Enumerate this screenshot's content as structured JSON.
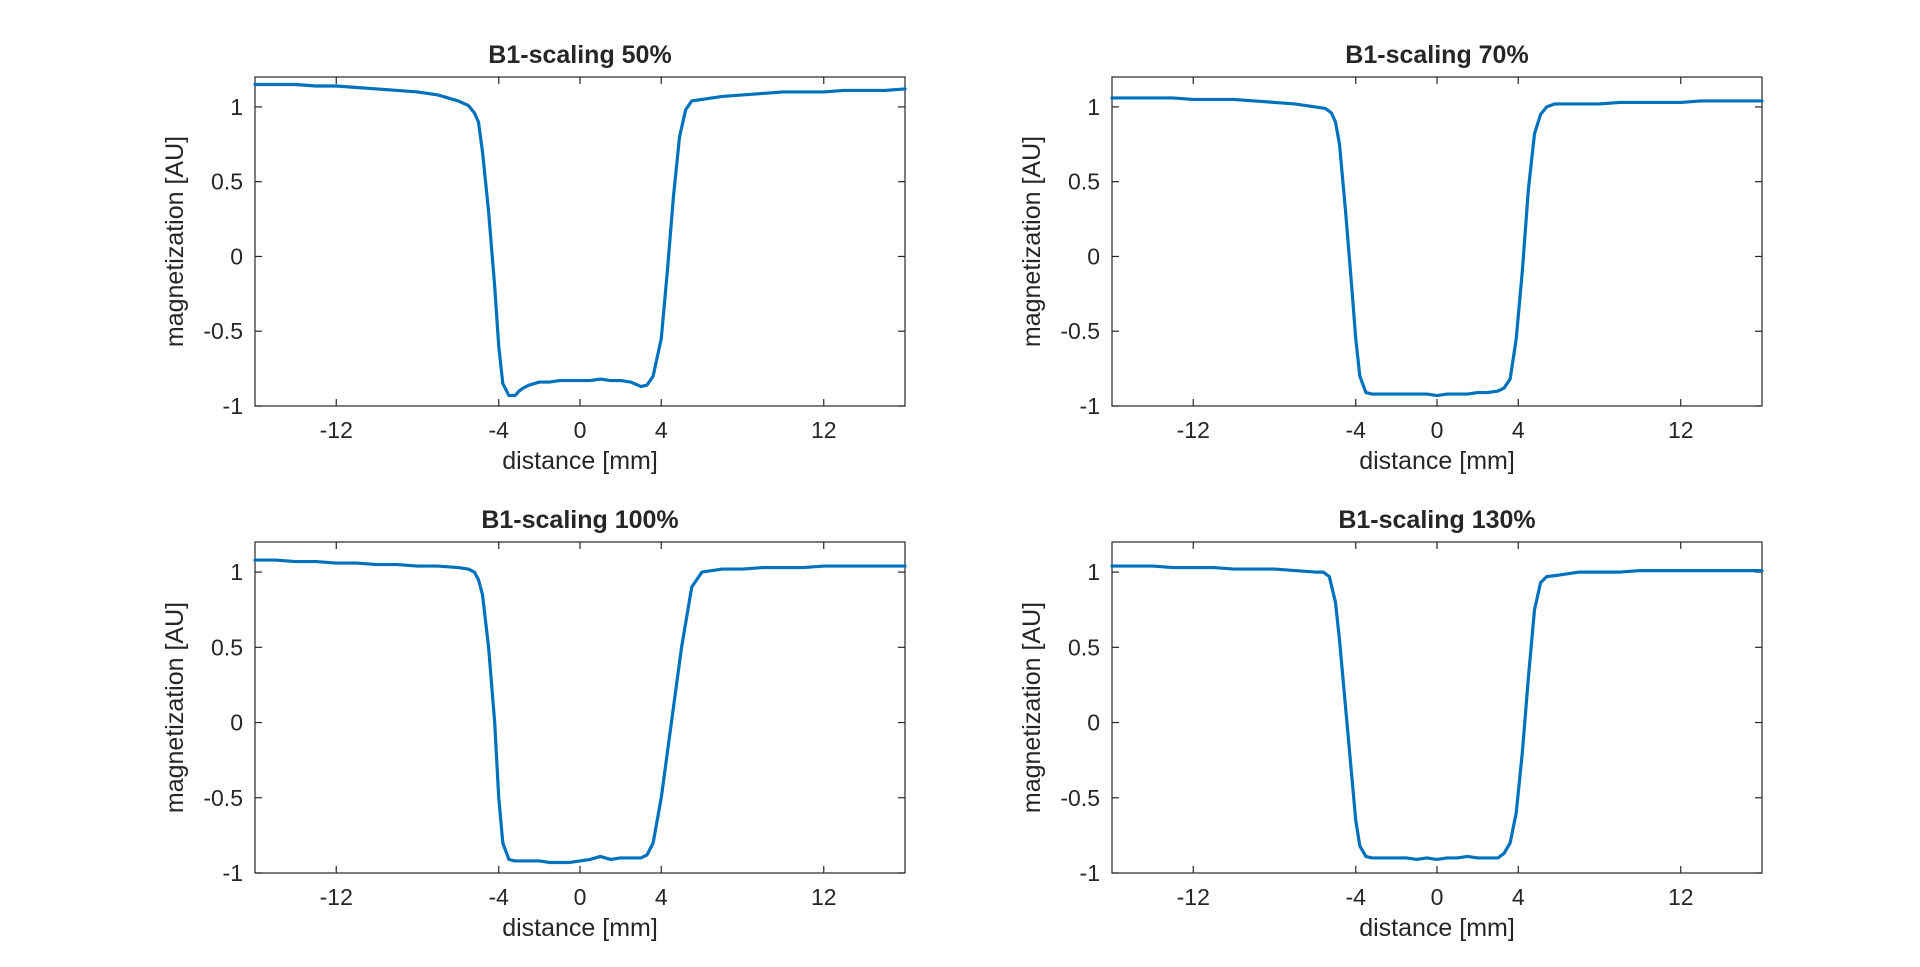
{
  "figure": {
    "line_color": "#0072BD",
    "axis_color": "#262626",
    "background": "#ffffff"
  },
  "chart_data": [
    {
      "type": "line",
      "title": "B1-scaling 50%",
      "xlabel": "distance [mm]",
      "ylabel": "magnetization [AU]",
      "xlim": [
        -16,
        16
      ],
      "ylim": [
        -1,
        1.2
      ],
      "xticks": [
        -12,
        -4,
        0,
        4,
        12
      ],
      "yticks": [
        -1,
        -0.5,
        0,
        0.5,
        1
      ],
      "xtick_labels": [
        "-12",
        "-4",
        "0",
        "4",
        "12"
      ],
      "ytick_labels": [
        "-1",
        "-0.5",
        "0",
        "0.5",
        "1"
      ],
      "series": [
        {
          "name": "magnetization",
          "x": [
            -16,
            -15,
            -14,
            -13,
            -12,
            -11,
            -10,
            -9,
            -8,
            -7,
            -6.5,
            -6,
            -5.5,
            -5.2,
            -5,
            -4.8,
            -4.5,
            -4.2,
            -4,
            -3.8,
            -3.5,
            -3.2,
            -3,
            -2.8,
            -2.5,
            -2,
            -1.5,
            -1,
            -0.5,
            0,
            0.5,
            1,
            1.5,
            2,
            2.5,
            3,
            3.3,
            3.6,
            4,
            4.3,
            4.6,
            4.9,
            5.2,
            5.5,
            6,
            6.5,
            7,
            8,
            9,
            10,
            11,
            12,
            13,
            14,
            15,
            16
          ],
          "y": [
            1.15,
            1.15,
            1.15,
            1.14,
            1.14,
            1.13,
            1.12,
            1.11,
            1.1,
            1.08,
            1.06,
            1.04,
            1.01,
            0.96,
            0.9,
            0.7,
            0.3,
            -0.2,
            -0.6,
            -0.85,
            -0.93,
            -0.93,
            -0.9,
            -0.88,
            -0.86,
            -0.84,
            -0.84,
            -0.83,
            -0.83,
            -0.83,
            -0.83,
            -0.82,
            -0.83,
            -0.83,
            -0.84,
            -0.87,
            -0.86,
            -0.8,
            -0.55,
            -0.1,
            0.4,
            0.8,
            0.98,
            1.04,
            1.05,
            1.06,
            1.07,
            1.08,
            1.09,
            1.1,
            1.1,
            1.1,
            1.11,
            1.11,
            1.11,
            1.12
          ]
        }
      ]
    },
    {
      "type": "line",
      "title": "B1-scaling 70%",
      "xlabel": "distance [mm]",
      "ylabel": "magnetization [AU]",
      "xlim": [
        -16,
        16
      ],
      "ylim": [
        -1,
        1.2
      ],
      "xticks": [
        -12,
        -4,
        0,
        4,
        12
      ],
      "yticks": [
        -1,
        -0.5,
        0,
        0.5,
        1
      ],
      "xtick_labels": [
        "-12",
        "-4",
        "0",
        "4",
        "12"
      ],
      "ytick_labels": [
        "-1",
        "-0.5",
        "0",
        "0.5",
        "1"
      ],
      "series": [
        {
          "name": "magnetization",
          "x": [
            -16,
            -15,
            -14,
            -13,
            -12,
            -11,
            -10,
            -9,
            -8,
            -7,
            -6,
            -5.5,
            -5.2,
            -5,
            -4.8,
            -4.5,
            -4.2,
            -4,
            -3.8,
            -3.5,
            -3.2,
            -3,
            -2.5,
            -2,
            -1.5,
            -1,
            -0.5,
            0,
            0.5,
            1,
            1.5,
            2,
            2.5,
            3,
            3.3,
            3.6,
            3.9,
            4.2,
            4.5,
            4.8,
            5.1,
            5.4,
            5.8,
            6.5,
            7,
            8,
            9,
            10,
            11,
            12,
            13,
            14,
            15,
            16
          ],
          "y": [
            1.06,
            1.06,
            1.06,
            1.06,
            1.05,
            1.05,
            1.05,
            1.04,
            1.03,
            1.02,
            1.0,
            0.99,
            0.96,
            0.9,
            0.75,
            0.3,
            -0.2,
            -0.55,
            -0.8,
            -0.91,
            -0.92,
            -0.92,
            -0.92,
            -0.92,
            -0.92,
            -0.92,
            -0.92,
            -0.93,
            -0.92,
            -0.92,
            -0.92,
            -0.91,
            -0.91,
            -0.9,
            -0.88,
            -0.82,
            -0.55,
            -0.1,
            0.45,
            0.82,
            0.95,
            1.0,
            1.02,
            1.02,
            1.02,
            1.02,
            1.03,
            1.03,
            1.03,
            1.03,
            1.04,
            1.04,
            1.04,
            1.04
          ]
        }
      ]
    },
    {
      "type": "line",
      "title": "B1-scaling 100%",
      "xlabel": "distance [mm]",
      "ylabel": "magnetization [AU]",
      "xlim": [
        -16,
        16
      ],
      "ylim": [
        -1,
        1.2
      ],
      "xticks": [
        -12,
        -4,
        0,
        4,
        12
      ],
      "yticks": [
        -1,
        -0.5,
        0,
        0.5,
        1
      ],
      "xtick_labels": [
        "-12",
        "-4",
        "0",
        "4",
        "12"
      ],
      "ytick_labels": [
        "-1",
        "-0.5",
        "0",
        "0.5",
        "1"
      ],
      "series": [
        {
          "name": "magnetization",
          "x": [
            -16,
            -15,
            -14,
            -13,
            -12,
            -11,
            -10,
            -9,
            -8,
            -7,
            -6,
            -5.5,
            -5.2,
            -5,
            -4.8,
            -4.5,
            -4.2,
            -4,
            -3.8,
            -3.5,
            -3.2,
            -3,
            -2.5,
            -2,
            -1.5,
            -1,
            -0.5,
            0,
            0.5,
            1,
            1.5,
            2,
            2.5,
            3,
            3.3,
            3.6,
            4,
            4.5,
            5,
            5.5,
            6,
            6.5,
            7,
            8,
            9,
            10,
            11,
            12,
            13,
            14,
            15,
            16
          ],
          "y": [
            1.08,
            1.08,
            1.07,
            1.07,
            1.06,
            1.06,
            1.05,
            1.05,
            1.04,
            1.04,
            1.03,
            1.02,
            1.0,
            0.95,
            0.85,
            0.5,
            0.0,
            -0.5,
            -0.8,
            -0.91,
            -0.92,
            -0.92,
            -0.92,
            -0.92,
            -0.93,
            -0.93,
            -0.93,
            -0.92,
            -0.91,
            -0.89,
            -0.91,
            -0.9,
            -0.9,
            -0.9,
            -0.88,
            -0.8,
            -0.5,
            0.0,
            0.5,
            0.9,
            1.0,
            1.01,
            1.02,
            1.02,
            1.03,
            1.03,
            1.03,
            1.04,
            1.04,
            1.04,
            1.04,
            1.04
          ]
        }
      ]
    },
    {
      "type": "line",
      "title": "B1-scaling 130%",
      "xlabel": "distance [mm]",
      "ylabel": "magnetization [AU]",
      "xlim": [
        -16,
        16
      ],
      "ylim": [
        -1,
        1.2
      ],
      "xticks": [
        -12,
        -4,
        0,
        4,
        12
      ],
      "yticks": [
        -1,
        -0.5,
        0,
        0.5,
        1
      ],
      "xtick_labels": [
        "-12",
        "-4",
        "0",
        "4",
        "12"
      ],
      "ytick_labels": [
        "-1",
        "-0.5",
        "0",
        "0.5",
        "1"
      ],
      "series": [
        {
          "name": "magnetization",
          "x": [
            -16,
            -15,
            -14,
            -13,
            -12,
            -11,
            -10,
            -9,
            -8,
            -7,
            -6,
            -5.6,
            -5.3,
            -5,
            -4.8,
            -4.5,
            -4.2,
            -4,
            -3.8,
            -3.5,
            -3.2,
            -3,
            -2.5,
            -2,
            -1.5,
            -1,
            -0.5,
            0,
            0.5,
            1,
            1.5,
            2,
            2.5,
            3,
            3.3,
            3.6,
            3.9,
            4.2,
            4.5,
            4.8,
            5.1,
            5.4,
            6,
            6.5,
            7,
            8,
            9,
            10,
            11,
            12,
            13,
            14,
            15,
            16
          ],
          "y": [
            1.04,
            1.04,
            1.04,
            1.03,
            1.03,
            1.03,
            1.02,
            1.02,
            1.02,
            1.01,
            1.0,
            1.0,
            0.97,
            0.8,
            0.55,
            0.1,
            -0.35,
            -0.65,
            -0.82,
            -0.89,
            -0.9,
            -0.9,
            -0.9,
            -0.9,
            -0.9,
            -0.91,
            -0.9,
            -0.91,
            -0.9,
            -0.9,
            -0.89,
            -0.9,
            -0.9,
            -0.9,
            -0.87,
            -0.8,
            -0.6,
            -0.2,
            0.3,
            0.75,
            0.93,
            0.97,
            0.98,
            0.99,
            1.0,
            1.0,
            1.0,
            1.01,
            1.01,
            1.01,
            1.01,
            1.01,
            1.01,
            1.01
          ]
        }
      ]
    }
  ]
}
